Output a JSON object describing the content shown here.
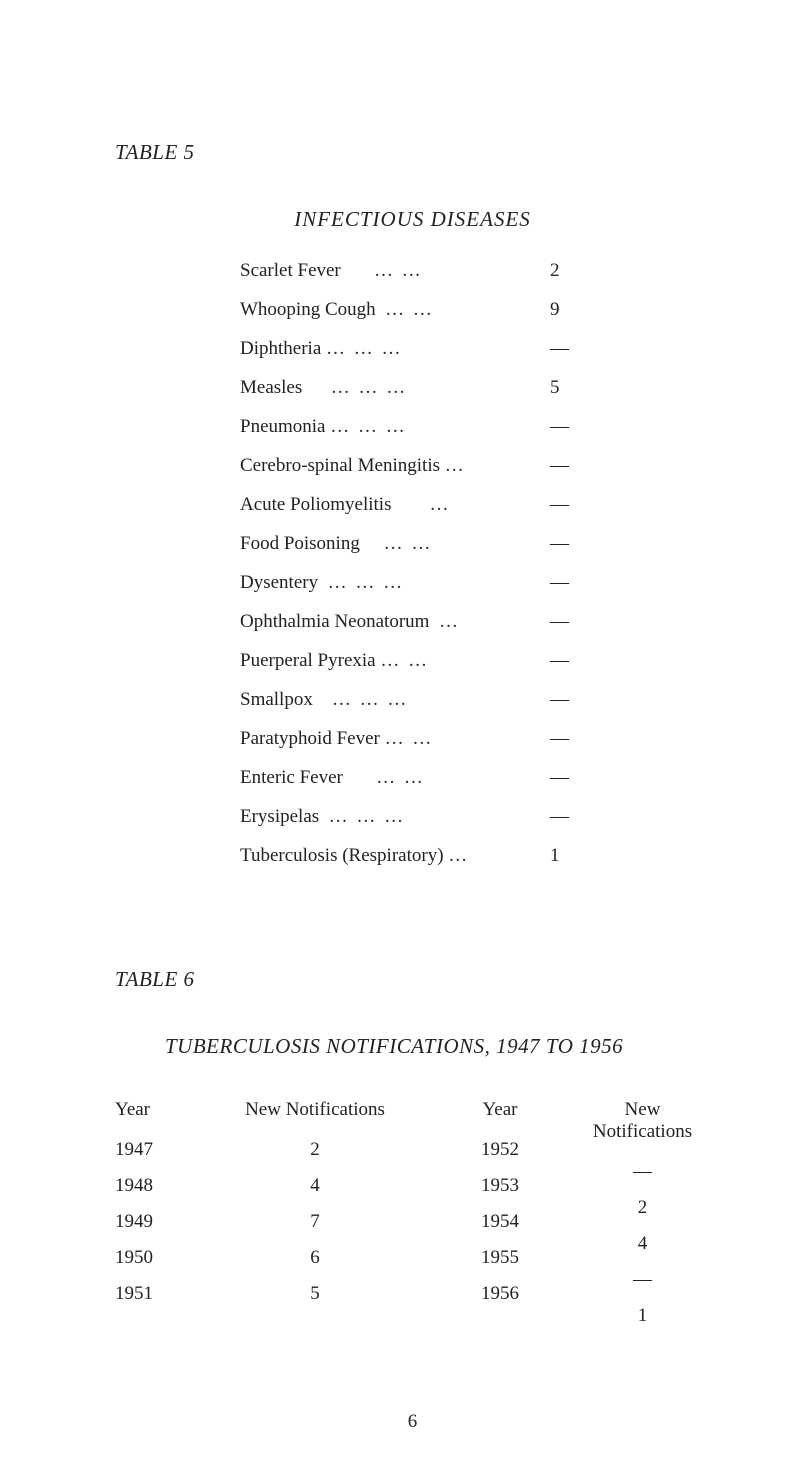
{
  "table5": {
    "heading": "TABLE 5",
    "title": "INFECTIOUS DISEASES",
    "rows": [
      {
        "label": "Scarlet Fever",
        "dots": "…   …",
        "value": "2"
      },
      {
        "label": "Whooping Cough",
        "dots": "…   …",
        "value": "9"
      },
      {
        "label": "Diphtheria",
        "dots": "…   …   …",
        "value": "—"
      },
      {
        "label": "Measles",
        "dots": "…   …   …",
        "value": "5"
      },
      {
        "label": "Pneumonia",
        "dots": "…   …   …",
        "value": "—"
      },
      {
        "label": "Cerebro-spinal Meningitis",
        "dots": "…",
        "value": "—"
      },
      {
        "label": "Acute Poliomyelitis",
        "dots": "…",
        "value": "—"
      },
      {
        "label": "Food Poisoning",
        "dots": "…   …",
        "value": "—"
      },
      {
        "label": "Dysentery",
        "dots": "…   …   …",
        "value": "—"
      },
      {
        "label": "Ophthalmia Neonatorum",
        "dots": "…",
        "value": "—"
      },
      {
        "label": "Puerperal Pyrexia",
        "dots": "…   …",
        "value": "—"
      },
      {
        "label": "Smallpox",
        "dots": "…   …   …",
        "value": "—"
      },
      {
        "label": "Paratyphoid Fever",
        "dots": "…   …",
        "value": "—"
      },
      {
        "label": "Enteric Fever",
        "dots": "…   …",
        "value": "—"
      },
      {
        "label": "Erysipelas",
        "dots": "…   …   …",
        "value": "—"
      },
      {
        "label": "Tuberculosis (Respiratory)",
        "dots": "…",
        "value": "1"
      }
    ]
  },
  "table6": {
    "heading": "TABLE 6",
    "title": "TUBERCULOSIS NOTIFICATIONS, 1947 TO 1956",
    "headers": {
      "year": "Year",
      "notifications": "New Notifications"
    },
    "left": [
      {
        "year": "1947",
        "value": "2"
      },
      {
        "year": "1948",
        "value": "4"
      },
      {
        "year": "1949",
        "value": "7"
      },
      {
        "year": "1950",
        "value": "6"
      },
      {
        "year": "1951",
        "value": "5"
      }
    ],
    "right": [
      {
        "year": "1952",
        "value": "—"
      },
      {
        "year": "1953",
        "value": "2"
      },
      {
        "year": "1954",
        "value": "4"
      },
      {
        "year": "1955",
        "value": "—"
      },
      {
        "year": "1956",
        "value": "1"
      }
    ]
  },
  "pageNumber": "6",
  "colors": {
    "background": "#ffffff",
    "text": "#222222"
  },
  "fonts": {
    "body_family": "Times New Roman",
    "body_size_pt": 15,
    "heading_style": "italic"
  }
}
